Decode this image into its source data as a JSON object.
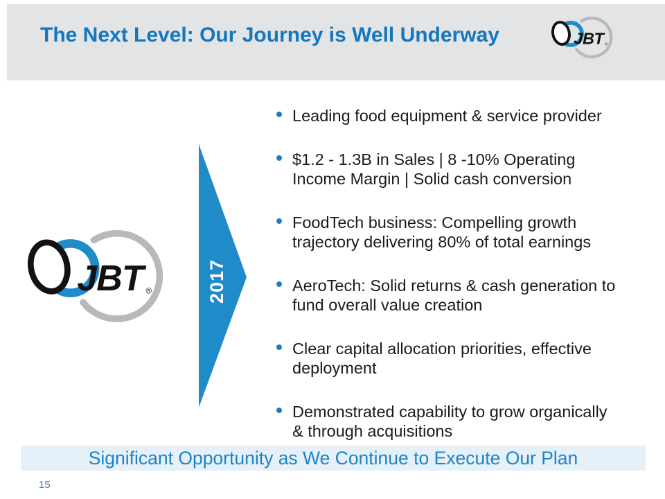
{
  "slide": {
    "title": "The Next Level: Our Journey is Well Underway",
    "arrow_label": "2017",
    "footer_banner": "Significant Opportunity as We Continue to Execute Our Plan",
    "page_number": "15"
  },
  "logo": {
    "text": "JBT",
    "registered_mark": "®"
  },
  "bullets": [
    {
      "lines": [
        "Leading food equipment & service provider"
      ]
    },
    {
      "lines": [
        "$1.2 - 1.3B in Sales | 8 -10% Operating",
        "Income Margin | Solid cash conversion"
      ]
    },
    {
      "lines": [
        "FoodTech business: Compelling growth",
        "trajectory delivering 80% of total earnings"
      ]
    },
    {
      "lines": [
        "AeroTech: Solid returns & cash generation to",
        "fund overall value creation"
      ]
    },
    {
      "lines": [
        "Clear capital allocation priorities, effective",
        "deployment"
      ]
    },
    {
      "lines": [
        "Demonstrated capability to grow organically",
        "& through acquisitions"
      ]
    }
  ],
  "colors": {
    "header_band_bg": "#e3e4e6",
    "title_blue": "#1477bd",
    "arrow_blue": "#1f8bc9",
    "bullet_dot_blue": "#1f7ec0",
    "banner_bg": "#e5f0f8",
    "banner_text_blue": "#1b85c6",
    "page_number_blue": "#3f7cba",
    "logo_gray": "#b8b9bb",
    "logo_black": "#121212",
    "body_text": "#1a1a1a"
  }
}
